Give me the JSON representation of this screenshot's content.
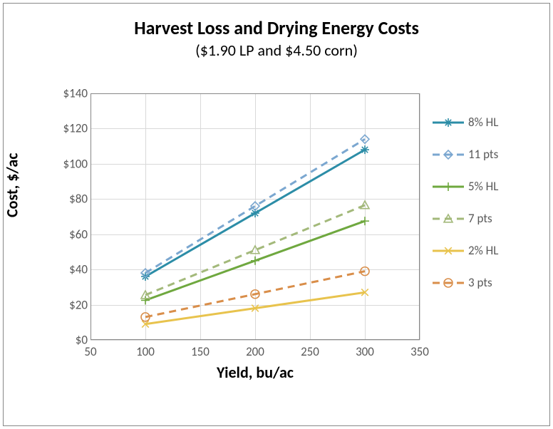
{
  "chart": {
    "type": "line",
    "title": "Harvest Loss and Drying Energy Costs",
    "subtitle": "($1.90 LP and $4.50 corn)",
    "title_fontsize": 26,
    "subtitle_fontsize": 22,
    "xaxis": {
      "label": "Yield, bu/ac",
      "label_fontsize": 22,
      "min": 50,
      "max": 350,
      "tick_step": 50,
      "ticks": [
        50,
        100,
        150,
        200,
        250,
        300,
        350
      ],
      "tick_fontsize": 17,
      "tick_color": "#595959"
    },
    "yaxis": {
      "label": "Cost, $/ac",
      "label_fontsize": 22,
      "min": 0,
      "max": 140,
      "tick_step": 20,
      "ticks": [
        0,
        20,
        40,
        60,
        80,
        100,
        120,
        140
      ],
      "tick_labels": [
        "$0",
        "$20",
        "$40",
        "$60",
        "$80",
        "$100",
        "$120",
        "$140"
      ],
      "tick_fontsize": 17,
      "tick_color": "#595959"
    },
    "grid_color": "#d9d9d9",
    "border_color": "#868686",
    "background_color": "#ffffff",
    "line_width_solid": 3,
    "line_width_dashed": 3,
    "dash_pattern": "10,7",
    "marker_size": 12,
    "x_values": [
      100,
      200,
      300
    ],
    "series": [
      {
        "name": "8% HL",
        "y": [
          36,
          72,
          108
        ],
        "color": "#2c8da7",
        "line_style": "solid",
        "marker": "star"
      },
      {
        "name": "11 pts",
        "y": [
          38,
          76,
          114
        ],
        "color": "#7ba7d0",
        "line_style": "dashed",
        "marker": "diamond"
      },
      {
        "name": "5% HL",
        "y": [
          22.5,
          45,
          67.5
        ],
        "color": "#6fa83f",
        "line_style": "solid",
        "marker": "plus"
      },
      {
        "name": "7 pts",
        "y": [
          25.5,
          51,
          76.5
        ],
        "color": "#a3b97a",
        "line_style": "dashed",
        "marker": "triangle"
      },
      {
        "name": "2% HL",
        "y": [
          9,
          18,
          27
        ],
        "color": "#e8c34d",
        "line_style": "solid",
        "marker": "x"
      },
      {
        "name": "3 pts",
        "y": [
          13,
          26,
          39
        ],
        "color": "#d98e4a",
        "line_style": "dashed",
        "marker": "circle"
      }
    ],
    "legend_position": "right"
  }
}
